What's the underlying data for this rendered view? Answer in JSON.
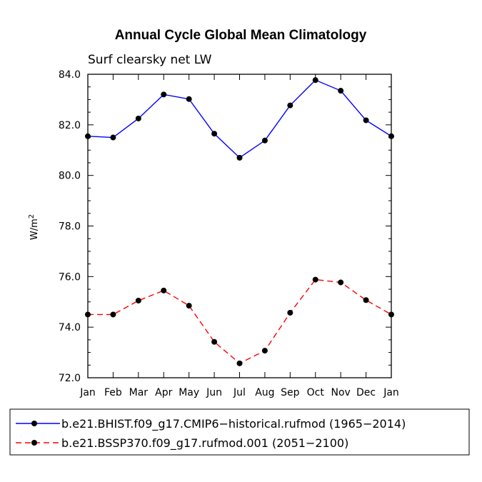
{
  "chart_data": {
    "type": "line",
    "title": "Annual Cycle Global Mean Climatology",
    "subtitle": "Surf clearsky net LW",
    "ylabel": "W/m",
    "ylabel_superscript": "2",
    "xlabel": "",
    "ylim": [
      72.0,
      84.0
    ],
    "yticks": [
      "72.0",
      "74.0",
      "76.0",
      "78.0",
      "80.0",
      "82.0",
      "84.0"
    ],
    "categories": [
      "Jan",
      "Feb",
      "Mar",
      "Apr",
      "May",
      "Jun",
      "Jul",
      "Aug",
      "Sep",
      "Oct",
      "Nov",
      "Dec",
      "Jan"
    ],
    "series": [
      {
        "name": "b.e21.BHIST.f09_g17.CMIP6−historical.rufmod (1965−2014)",
        "color": "#0000ff",
        "dash": "solid",
        "values": [
          81.55,
          81.5,
          82.25,
          83.2,
          83.02,
          81.65,
          80.7,
          81.38,
          82.77,
          83.77,
          83.35,
          82.18,
          81.55
        ]
      },
      {
        "name": "b.e21.BSSP370.f09_g17.rufmod.001 (2051−2100)",
        "color": "#ff0000",
        "dash": "dashed",
        "values": [
          74.5,
          74.5,
          75.05,
          75.45,
          74.85,
          73.42,
          72.57,
          73.07,
          74.57,
          75.88,
          75.77,
          75.07,
          74.5
        ]
      }
    ],
    "legend_position": "bottom"
  }
}
